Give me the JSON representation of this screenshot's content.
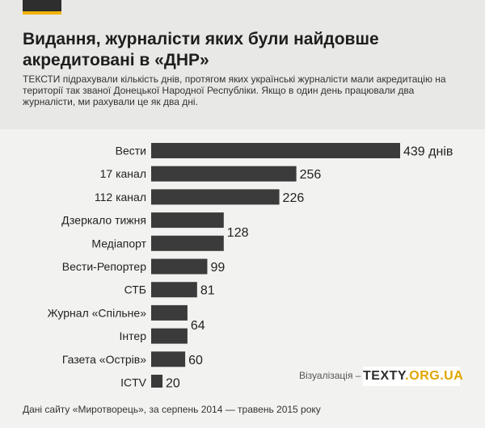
{
  "header": {
    "title": "Видання, журналісти яких були найдовше акредитовані в «ДНР»",
    "subtitle": "ТЕКСТИ підрахували кількість днів, протягом яких українські журналісти мали акредитацію на території так званої Донецької Народної Республіки. Якщо в один день працювали два журналісти, ми рахували це як два дні."
  },
  "footer": {
    "credit_label": "Візуалізація –",
    "brand_main": "TEXTY",
    "brand_accent": ".ORG.UA",
    "source": "Дані сайту «Миротворець», за серпень 2014 — травень 2015 року"
  },
  "colors": {
    "bar": "#3b3b3b",
    "accent": "#f0b400"
  },
  "chart_data": {
    "type": "bar",
    "orientation": "horizontal",
    "title": "Видання, журналісти яких були найдовше акредитовані в «ДНР»",
    "xlabel": "",
    "ylabel": "",
    "grid": false,
    "xlim": [
      0,
      439
    ],
    "unit_suffix_first": " днів",
    "categories": [
      "Вести",
      "17 канал",
      "112 канал",
      "Дзеркало тижня",
      "Медіапорт",
      "Вести-Репортер",
      "СТБ",
      "Журнал «Спільне»",
      "Інтер",
      "Газета «Острів»",
      "ICTV"
    ],
    "values": [
      439,
      256,
      226,
      128,
      128,
      99,
      81,
      64,
      64,
      60,
      20
    ],
    "value_labels": [
      {
        "text": "439 днів",
        "rows": [
          0
        ]
      },
      {
        "text": "256",
        "rows": [
          1
        ]
      },
      {
        "text": "226",
        "rows": [
          2
        ]
      },
      {
        "text": "128",
        "rows": [
          3,
          4
        ]
      },
      {
        "text": "99",
        "rows": [
          5
        ]
      },
      {
        "text": "81",
        "rows": [
          6
        ]
      },
      {
        "text": "64",
        "rows": [
          7,
          8
        ]
      },
      {
        "text": "60",
        "rows": [
          9
        ]
      },
      {
        "text": "20",
        "rows": [
          10
        ]
      }
    ]
  }
}
